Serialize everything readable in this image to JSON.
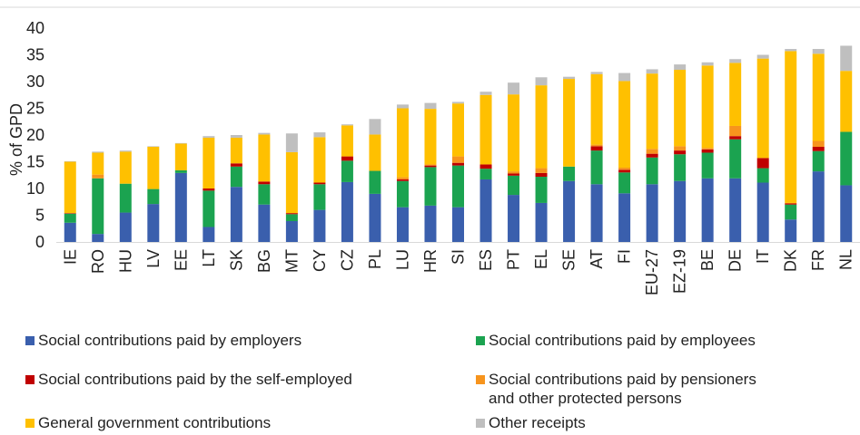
{
  "chart_data": {
    "type": "stacked-bar",
    "ylabel": "% of GPD",
    "ylim": [
      0,
      40
    ],
    "yticks": [
      "0",
      "5",
      "10",
      "15",
      "20",
      "25",
      "30",
      "35",
      "40"
    ],
    "grid": false,
    "legend_position": "bottom",
    "categories": [
      "IE",
      "RO",
      "HU",
      "LV",
      "EE",
      "LT",
      "SK",
      "BG",
      "MT",
      "CY",
      "CZ",
      "PL",
      "LU",
      "HR",
      "SI",
      "ES",
      "PT",
      "EL",
      "SE",
      "AT",
      "FI",
      "EU-27",
      "EZ-19",
      "BE",
      "DE",
      "IT",
      "DK",
      "FR",
      "NL"
    ],
    "series": [
      {
        "name": "Social contributions paid by employers",
        "color": "#3A5FAD",
        "values": [
          3.6,
          1.5,
          5.5,
          7.1,
          12.9,
          2.8,
          10.3,
          7.0,
          3.9,
          6.0,
          11.2,
          9.0,
          6.5,
          6.8,
          6.5,
          11.7,
          8.8,
          7.3,
          11.4,
          10.8,
          9.1,
          10.8,
          11.4,
          11.9,
          11.9,
          11.1,
          4.2,
          13.2,
          10.6
        ]
      },
      {
        "name": "Social contributions paid by employees",
        "color": "#1BA350",
        "values": [
          1.7,
          10.4,
          5.4,
          2.8,
          0.5,
          6.8,
          3.8,
          3.8,
          1.3,
          4.8,
          4.0,
          4.3,
          4.9,
          7.2,
          7.8,
          2.0,
          3.6,
          4.9,
          2.7,
          6.3,
          3.9,
          5.0,
          5.0,
          4.8,
          7.3,
          2.7,
          2.8,
          3.8,
          10.0
        ]
      },
      {
        "name": "Social contributions paid by the self-employed",
        "color": "#C00000",
        "values": [
          0.1,
          0,
          0,
          0,
          0,
          0.4,
          0.6,
          0.5,
          0.2,
          0.3,
          0.8,
          0,
          0.3,
          0.3,
          0.5,
          0.8,
          0.4,
          0.7,
          0,
          0.8,
          0.5,
          0.7,
          0.7,
          0.6,
          0.6,
          1.9,
          0.2,
          0.8,
          0
        ]
      },
      {
        "name": "Social contributions paid by pensioners\nand other protected persons",
        "color": "#F7941D",
        "values": [
          0,
          0.7,
          0,
          0,
          0,
          0,
          0,
          0,
          0,
          0,
          0,
          0,
          0.4,
          0.2,
          1.2,
          0,
          0.4,
          0.9,
          0,
          0.3,
          0.4,
          0.9,
          0.8,
          0.3,
          1.9,
          0,
          0.1,
          1.1,
          0
        ]
      },
      {
        "name": "General government contributions",
        "color": "#FFC000",
        "values": [
          9.6,
          4.1,
          6.0,
          7.9,
          5.0,
          9.5,
          4.8,
          8.8,
          11.4,
          8.5,
          5.8,
          6.8,
          12.9,
          10.4,
          9.9,
          13.0,
          14.4,
          15.5,
          16.4,
          13.2,
          16.2,
          14.1,
          14.3,
          15.4,
          11.8,
          18.6,
          28.4,
          16.3,
          11.4
        ]
      },
      {
        "name": "Other receipts",
        "color": "#BFBFBF",
        "values": [
          0.1,
          0.2,
          0.2,
          0.1,
          0.1,
          0.3,
          0.5,
          0.3,
          3.5,
          0.9,
          0.2,
          2.9,
          0.7,
          1.1,
          0.3,
          0.6,
          2.2,
          1.5,
          0.4,
          0.4,
          1.5,
          0.8,
          1.0,
          0.6,
          0.7,
          0.7,
          0.4,
          0.9,
          4.7
        ]
      }
    ]
  }
}
